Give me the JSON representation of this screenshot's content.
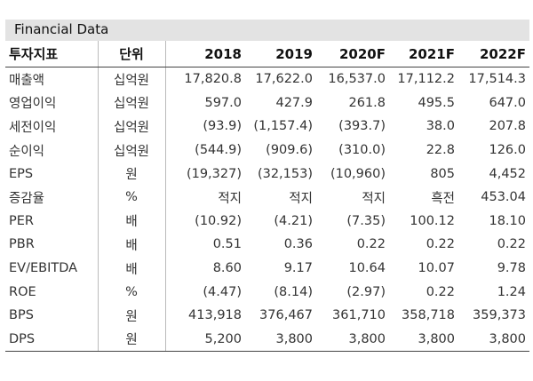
{
  "title": "Financial Data",
  "headers": [
    "투자지표",
    "단위",
    "2018",
    "2019",
    "2020F",
    "2021F",
    "2022F"
  ],
  "rows": [
    [
      "매출액",
      "십억원",
      "17,820.8",
      "17,622.0",
      "16,537.0",
      "17,112.2",
      "17,514.3"
    ],
    [
      "영업이익",
      "십억원",
      "597.0",
      "427.9",
      "261.8",
      "495.5",
      "647.0"
    ],
    [
      "세전이익",
      "십억원",
      "(93.9)",
      "(1,157.4)",
      "(393.7)",
      "38.0",
      "207.8"
    ],
    [
      "순이익",
      "십억원",
      "(544.9)",
      "(909.6)",
      "(310.0)",
      "22.8",
      "126.0"
    ],
    [
      "EPS",
      "원",
      "(19,327)",
      "(32,153)",
      "(10,960)",
      "805",
      "4,452"
    ],
    [
      "증감율",
      "%",
      "적지",
      "적지",
      "적지",
      "흑전",
      "453.04"
    ],
    [
      "PER",
      "배",
      "(10.92)",
      "(4.21)",
      "(7.35)",
      "100.12",
      "18.10"
    ],
    [
      "PBR",
      "배",
      "0.51",
      "0.36",
      "0.22",
      "0.22",
      "0.22"
    ],
    [
      "EV/EBITDA",
      "배",
      "8.60",
      "9.17",
      "10.64",
      "10.07",
      "9.78"
    ],
    [
      "ROE",
      "%",
      "(4.47)",
      "(8.14)",
      "(2.97)",
      "0.22",
      "1.24"
    ],
    [
      "BPS",
      "원",
      "413,918",
      "376,467",
      "361,710",
      "358,718",
      "359,373"
    ],
    [
      "DPS",
      "원",
      "5,200",
      "3,800",
      "3,800",
      "3,800",
      "3,800"
    ]
  ],
  "colors": {
    "title_bg": "#e3e3e3",
    "text": "#333333",
    "rule": "#444444"
  }
}
